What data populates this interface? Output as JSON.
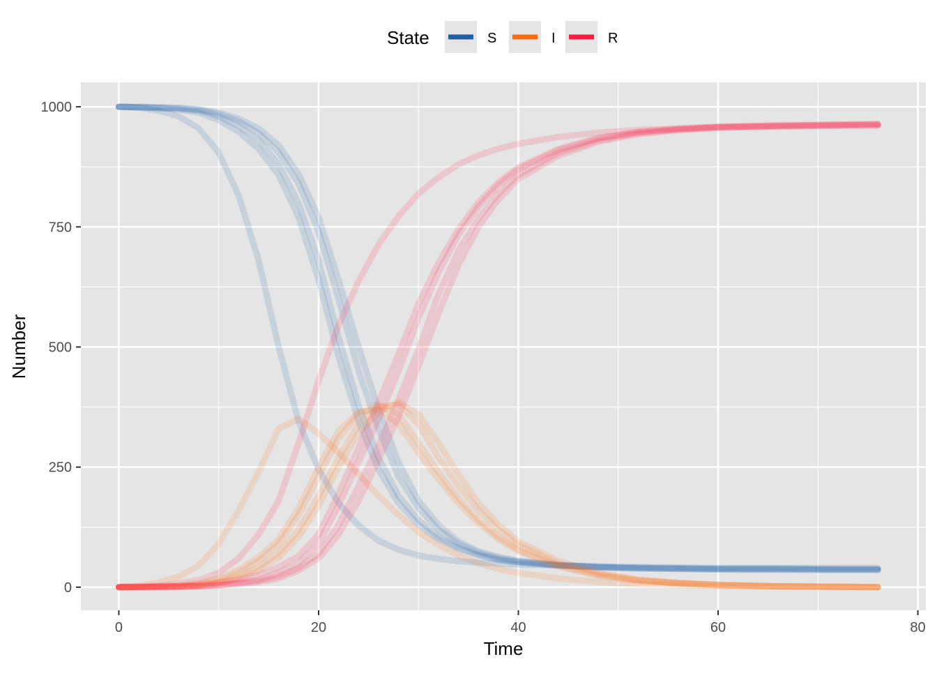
{
  "chart_data": {
    "type": "line",
    "title": "",
    "xlabel": "Time",
    "ylabel": "Number",
    "xlim": [
      -3.8,
      80.8
    ],
    "ylim": [
      -48,
      1051
    ],
    "x_ticks": [
      0,
      20,
      40,
      60,
      80
    ],
    "y_ticks": [
      0,
      250,
      500,
      750,
      1000
    ],
    "grid": true,
    "legend": {
      "title": "State",
      "placement": "top",
      "entries": [
        {
          "name": "S",
          "color": "#1c5fa8"
        },
        {
          "name": "I",
          "color": "#ff6a10"
        },
        {
          "name": "R",
          "color": "#ff1a40"
        }
      ]
    },
    "x": [
      0,
      2,
      4,
      6,
      8,
      10,
      12,
      14,
      16,
      18,
      20,
      22,
      24,
      26,
      28,
      30,
      32,
      34,
      36,
      38,
      40,
      44,
      48,
      52,
      56,
      60,
      66,
      72,
      76
    ],
    "runs": [
      {
        "S": [
          1000,
          998,
          992,
          980,
          955,
          905,
          815,
          680,
          500,
          345,
          245,
          175,
          128,
          97,
          78,
          66,
          59,
          54,
          51,
          49,
          47,
          45,
          43,
          42,
          41,
          40,
          40,
          40,
          40
        ],
        "I": [
          0,
          3,
          10,
          22,
          45,
          90,
          160,
          240,
          330,
          350,
          320,
          280,
          235,
          190,
          150,
          115,
          88,
          66,
          50,
          38,
          30,
          18,
          11,
          6,
          4,
          2,
          1,
          0,
          0
        ],
        "R": [
          0,
          1,
          3,
          8,
          15,
          30,
          60,
          110,
          180,
          300,
          430,
          545,
          637,
          713,
          772,
          819,
          853,
          880,
          899,
          913,
          923,
          937,
          946,
          952,
          955,
          958,
          959,
          960,
          960
        ]
      },
      {
        "S": [
          1000,
          999,
          998,
          996,
          992,
          980,
          960,
          930,
          880,
          800,
          680,
          520,
          380,
          270,
          190,
          140,
          105,
          82,
          68,
          58,
          52,
          45,
          41,
          39,
          38,
          37,
          37,
          36,
          36
        ],
        "I": [
          0,
          1,
          2,
          3,
          6,
          15,
          30,
          55,
          90,
          150,
          230,
          310,
          360,
          380,
          360,
          300,
          240,
          185,
          140,
          105,
          78,
          45,
          25,
          14,
          8,
          5,
          2,
          1,
          0
        ],
        "R": [
          0,
          0,
          0,
          1,
          2,
          5,
          10,
          15,
          30,
          50,
          90,
          170,
          260,
          350,
          450,
          560,
          655,
          733,
          792,
          837,
          870,
          910,
          934,
          947,
          954,
          958,
          961,
          963,
          964
        ]
      },
      {
        "S": [
          1000,
          999,
          998,
          997,
          994,
          985,
          970,
          945,
          905,
          840,
          740,
          600,
          450,
          330,
          230,
          165,
          120,
          90,
          72,
          61,
          54,
          46,
          42,
          40,
          39,
          38,
          38,
          37,
          37
        ],
        "I": [
          0,
          1,
          1,
          2,
          4,
          10,
          22,
          42,
          72,
          120,
          190,
          270,
          340,
          375,
          380,
          340,
          270,
          210,
          160,
          120,
          88,
          50,
          28,
          15,
          9,
          5,
          2,
          1,
          0
        ],
        "R": [
          0,
          0,
          0,
          1,
          2,
          4,
          8,
          13,
          23,
          40,
          70,
          130,
          210,
          295,
          390,
          495,
          610,
          700,
          768,
          819,
          858,
          904,
          930,
          945,
          952,
          957,
          960,
          962,
          963
        ]
      },
      {
        "S": [
          1000,
          1000,
          999,
          998,
          995,
          988,
          975,
          955,
          920,
          860,
          770,
          640,
          500,
          370,
          260,
          180,
          130,
          95,
          75,
          63,
          55,
          47,
          43,
          41,
          40,
          39,
          39,
          38,
          38
        ],
        "I": [
          0,
          0,
          1,
          2,
          3,
          8,
          18,
          35,
          62,
          105,
          170,
          250,
          320,
          365,
          385,
          360,
          300,
          235,
          175,
          130,
          95,
          55,
          30,
          16,
          9,
          5,
          2,
          1,
          0
        ],
        "R": [
          0,
          0,
          0,
          0,
          2,
          4,
          7,
          10,
          18,
          35,
          60,
          110,
          180,
          265,
          355,
          460,
          570,
          670,
          750,
          807,
          850,
          898,
          927,
          943,
          951,
          956,
          959,
          961,
          962
        ]
      },
      {
        "S": [
          1000,
          999,
          997,
          994,
          988,
          972,
          948,
          912,
          858,
          770,
          640,
          480,
          345,
          245,
          175,
          130,
          100,
          80,
          66,
          57,
          51,
          45,
          41,
          39,
          38,
          37,
          36,
          36,
          36
        ],
        "I": [
          0,
          1,
          2,
          4,
          8,
          18,
          36,
          62,
          100,
          165,
          250,
          325,
          365,
          370,
          340,
          280,
          225,
          175,
          133,
          100,
          75,
          43,
          24,
          13,
          8,
          4,
          2,
          1,
          0
        ],
        "R": [
          0,
          0,
          1,
          2,
          4,
          10,
          16,
          26,
          42,
          65,
          110,
          195,
          290,
          385,
          485,
          590,
          675,
          745,
          801,
          843,
          874,
          912,
          935,
          948,
          954,
          959,
          962,
          963,
          964
        ]
      }
    ]
  }
}
